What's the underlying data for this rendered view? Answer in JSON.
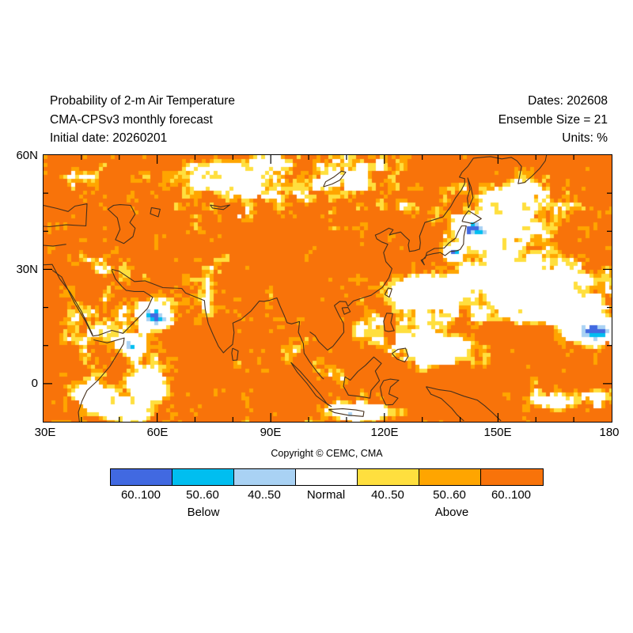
{
  "header": {
    "left_lines": [
      "Probability of 2-m Air Temperature",
      "CMA-CPSv3 monthly forecast",
      "Initial date: 20260201"
    ],
    "right_lines": [
      "Dates: 202608",
      "Ensemble Size = 21",
      "Units: %"
    ]
  },
  "map": {
    "y_axis_labels": [
      "60N",
      "30N",
      "0"
    ],
    "x_axis_labels": [
      "30E",
      "60E",
      "90E",
      "120E",
      "150E",
      "180"
    ],
    "copyright": "Copyright © CEMC, CMA"
  },
  "legend": {
    "boxes": [
      {
        "label": "60..100",
        "color": "#4169E1"
      },
      {
        "label": "50..60",
        "color": "#00BEF0"
      },
      {
        "label": "40..50",
        "color": "#A9D2F4"
      },
      {
        "label": "Normal",
        "color": "#FFFFFF"
      },
      {
        "label": "40..50",
        "color": "#FFDF3E"
      },
      {
        "label": "50..60",
        "color": "#FFA500"
      },
      {
        "label": "60..100",
        "color": "#F8730A"
      }
    ],
    "below_label": "Below",
    "above_label": "Above"
  },
  "colors": {
    "frame": "#000000",
    "tick": "#000000",
    "coastline": "#46301c"
  },
  "chart_data": {
    "type": "heatmap",
    "title": "Probability of 2-m Air Temperature",
    "x_ticks": [
      "30E",
      "60E",
      "90E",
      "120E",
      "150E",
      "180"
    ],
    "y_ticks": [
      "60N",
      "30N",
      "0"
    ],
    "categories_below": [
      "60..100",
      "50..60",
      "40..50"
    ],
    "category_normal": "Normal",
    "categories_above": [
      "40..50",
      "50..60",
      "60..100"
    ],
    "dominant_category": "Above 60..100",
    "units": "%"
  }
}
